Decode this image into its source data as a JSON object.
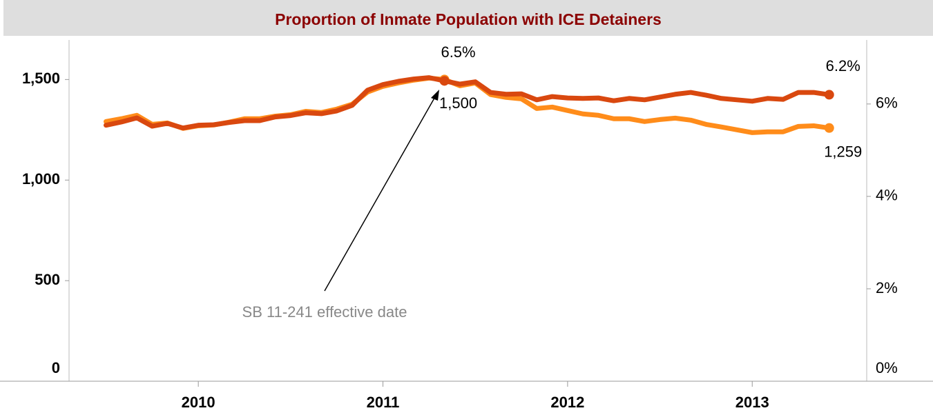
{
  "chart_data": {
    "type": "line",
    "title": "Proportion of Inmate Population with ICE Detainers",
    "annotation": "SB 11-241 effective date",
    "x": [
      2009.5,
      2009.583,
      2009.667,
      2009.75,
      2009.833,
      2009.917,
      2010,
      2010.083,
      2010.167,
      2010.25,
      2010.333,
      2010.417,
      2010.5,
      2010.583,
      2010.667,
      2010.75,
      2010.833,
      2010.917,
      2011,
      2011.083,
      2011.167,
      2011.25,
      2011.333,
      2011.417,
      2011.5,
      2011.583,
      2011.667,
      2011.75,
      2011.833,
      2011.917,
      2012,
      2012.083,
      2012.167,
      2012.25,
      2012.333,
      2012.417,
      2012.5,
      2012.583,
      2012.667,
      2012.75,
      2012.833,
      2012.917,
      2013,
      2013.083,
      2013.167,
      2013.25,
      2013.333,
      2013.417
    ],
    "xlim": [
      2009.3,
      2013.62
    ],
    "xticks": [
      2010,
      2011,
      2012,
      2013
    ],
    "ylim": [
      0,
      1700
    ],
    "yticks": [
      0,
      500,
      {
        "value": 1000,
        "label": "1,000"
      },
      {
        "value": 1500,
        "label": "1,500"
      }
    ],
    "y2lim": [
      0,
      7.4
    ],
    "y2ticks": [
      {
        "value": 0,
        "label": "0%"
      },
      {
        "value": 2,
        "label": "2%"
      },
      {
        "value": 4,
        "label": "4%"
      },
      {
        "value": 6,
        "label": "6%"
      }
    ],
    "series": [
      {
        "color": "#ff8c1a",
        "values": [
          1291,
          1305,
          1322,
          1277,
          1284,
          1257,
          1270,
          1274,
          1288,
          1305,
          1305,
          1318,
          1325,
          1342,
          1336,
          1353,
          1377,
          1438,
          1466,
          1483,
          1497,
          1507,
          1500,
          1469,
          1483,
          1425,
          1411,
          1404,
          1356,
          1363,
          1346,
          1329,
          1322,
          1305,
          1305,
          1291,
          1301,
          1308,
          1298,
          1277,
          1264,
          1250,
          1236,
          1240,
          1240,
          1267,
          1270,
          1259
        ],
        "value_labels": [
          null,
          null,
          null,
          null,
          null,
          null,
          null,
          null,
          null,
          null,
          null,
          null,
          null,
          null,
          null,
          null,
          null,
          null,
          null,
          null,
          null,
          null,
          "1,500",
          null,
          null,
          null,
          null,
          null,
          null,
          null,
          null,
          null,
          null,
          null,
          null,
          null,
          null,
          null,
          null,
          null,
          null,
          null,
          null,
          null,
          null,
          null,
          null,
          "1,259"
        ]
      },
      {
        "color": "#d9480f",
        "axis": "y2",
        "values": [
          5.54,
          5.61,
          5.7,
          5.52,
          5.58,
          5.48,
          5.54,
          5.55,
          5.6,
          5.64,
          5.64,
          5.72,
          5.75,
          5.81,
          5.79,
          5.85,
          5.97,
          6.3,
          6.42,
          6.49,
          6.54,
          6.57,
          6.5,
          6.43,
          6.48,
          6.25,
          6.21,
          6.22,
          6.09,
          6.16,
          6.13,
          6.12,
          6.13,
          6.07,
          6.12,
          6.09,
          6.15,
          6.21,
          6.25,
          6.19,
          6.12,
          6.09,
          6.06,
          6.12,
          6.1,
          6.25,
          6.25,
          6.2
        ],
        "value_labels": [
          null,
          null,
          null,
          null,
          null,
          null,
          null,
          null,
          null,
          null,
          null,
          null,
          null,
          null,
          null,
          null,
          null,
          null,
          null,
          null,
          null,
          null,
          "6.5%",
          null,
          null,
          null,
          null,
          null,
          null,
          null,
          null,
          null,
          null,
          null,
          null,
          null,
          null,
          null,
          null,
          null,
          null,
          null,
          null,
          null,
          null,
          null,
          null,
          "6.2%"
        ]
      }
    ]
  }
}
